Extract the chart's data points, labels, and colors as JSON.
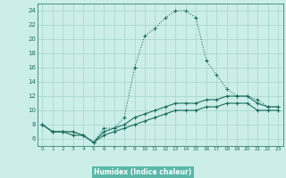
{
  "xlabel": "Humidex (Indice chaleur)",
  "background_color": "#cceee8",
  "grid_color": "#aad8d0",
  "line_color": "#1a6e60",
  "xlabel_bg": "#5ab8a8",
  "xlim": [
    -0.5,
    23.5
  ],
  "ylim": [
    5.0,
    25.0
  ],
  "x_ticks": [
    0,
    1,
    2,
    3,
    4,
    5,
    6,
    7,
    8,
    9,
    10,
    11,
    12,
    13,
    14,
    15,
    16,
    17,
    18,
    19,
    20,
    21,
    22,
    23
  ],
  "y_ticks": [
    6,
    8,
    10,
    12,
    14,
    16,
    18,
    20,
    22,
    24
  ],
  "series1_x": [
    0,
    1,
    2,
    3,
    4,
    5,
    6,
    7,
    8,
    9,
    10,
    11,
    12,
    13,
    14,
    15,
    16,
    17,
    18,
    19,
    20,
    21,
    22,
    23
  ],
  "series1_y": [
    8,
    7,
    7,
    7,
    6.5,
    5.5,
    7.5,
    7.5,
    9,
    16,
    20.5,
    21.5,
    23,
    24,
    24,
    23,
    17,
    15,
    13,
    12,
    12,
    11.5,
    10.5,
    10.5
  ],
  "series2_x": [
    0,
    1,
    2,
    3,
    4,
    5,
    6,
    7,
    8,
    9,
    10,
    11,
    12,
    13,
    14,
    15,
    16,
    17,
    18,
    19,
    20,
    21,
    22,
    23
  ],
  "series2_y": [
    8,
    7,
    7,
    7,
    6.5,
    5.5,
    7,
    7.5,
    8,
    9,
    9.5,
    10,
    10.5,
    11,
    11,
    11,
    11.5,
    11.5,
    12,
    12,
    12,
    11,
    10.5,
    10.5
  ],
  "series3_x": [
    0,
    1,
    2,
    3,
    4,
    5,
    6,
    7,
    8,
    9,
    10,
    11,
    12,
    13,
    14,
    15,
    16,
    17,
    18,
    19,
    20,
    21,
    22,
    23
  ],
  "series3_y": [
    8,
    7,
    7,
    6.5,
    6.5,
    5.5,
    6.5,
    7,
    7.5,
    8,
    8.5,
    9,
    9.5,
    10,
    10,
    10,
    10.5,
    10.5,
    11,
    11,
    11,
    10,
    10,
    10
  ]
}
